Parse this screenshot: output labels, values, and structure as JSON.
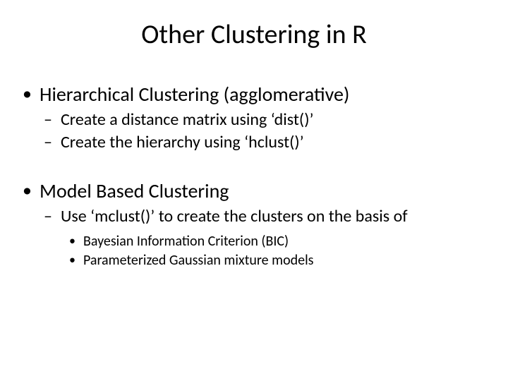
{
  "title": "Other Clustering in R",
  "sections": [
    {
      "heading": "Hierarchical Clustering (agglomerative)",
      "sub": [
        "Create a distance matrix using ‘dist()’",
        "Create the hierarchy using ‘hclust()’"
      ]
    },
    {
      "heading": "Model Based Clustering",
      "sub": [
        "Use ‘mclust()’ to create the clusters on the basis of"
      ],
      "subsub": [
        "Bayesian Information Criterion (BIC)",
        "Parameterized Gaussian mixture models"
      ]
    }
  ],
  "style": {
    "background_color": "#ffffff",
    "text_color": "#000000",
    "title_fontsize": 38,
    "l1_fontsize": 28,
    "l2_fontsize": 24,
    "l3_fontsize": 20,
    "font_family": "Calibri"
  }
}
